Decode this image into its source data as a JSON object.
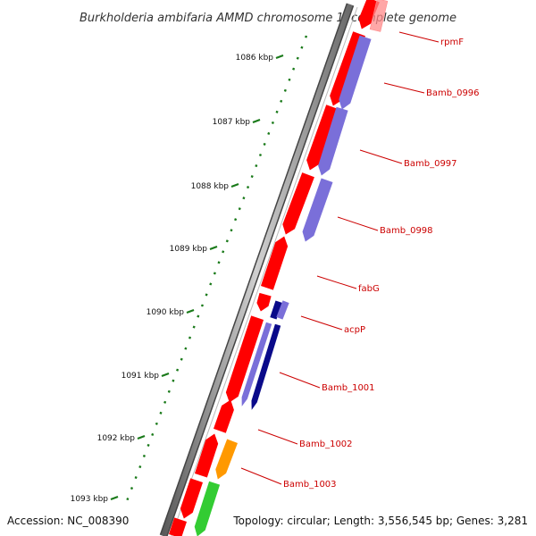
{
  "title": "Burkholderia ambifaria AMMD chromosome 1, complete genome",
  "accession": "Accession: NC_008390",
  "summary": "Topology: circular; Length: 3,556,545 bp; Genes: 3,281",
  "ticks": [
    "1086 kbp",
    "1087 kbp",
    "1088 kbp",
    "1089 kbp",
    "1090 kbp",
    "1091 kbp",
    "1092 kbp",
    "1093 kbp"
  ],
  "genes": [
    "rpmF",
    "Bamb_0996",
    "Bamb_0997",
    "Bamb_0998",
    "fabG",
    "acpP",
    "Bamb_1001",
    "Bamb_1002",
    "Bamb_1003"
  ],
  "colors": {
    "backbone": "#8a8a8a",
    "cds": "#ff0000",
    "feature_blue": "#7a6fd9",
    "feature_darkblue": "#0a0a8a",
    "feature_orange": "#ff9900",
    "feature_green": "#33cc33",
    "ticks": "#1a7a1a",
    "label": "#cc0000"
  }
}
